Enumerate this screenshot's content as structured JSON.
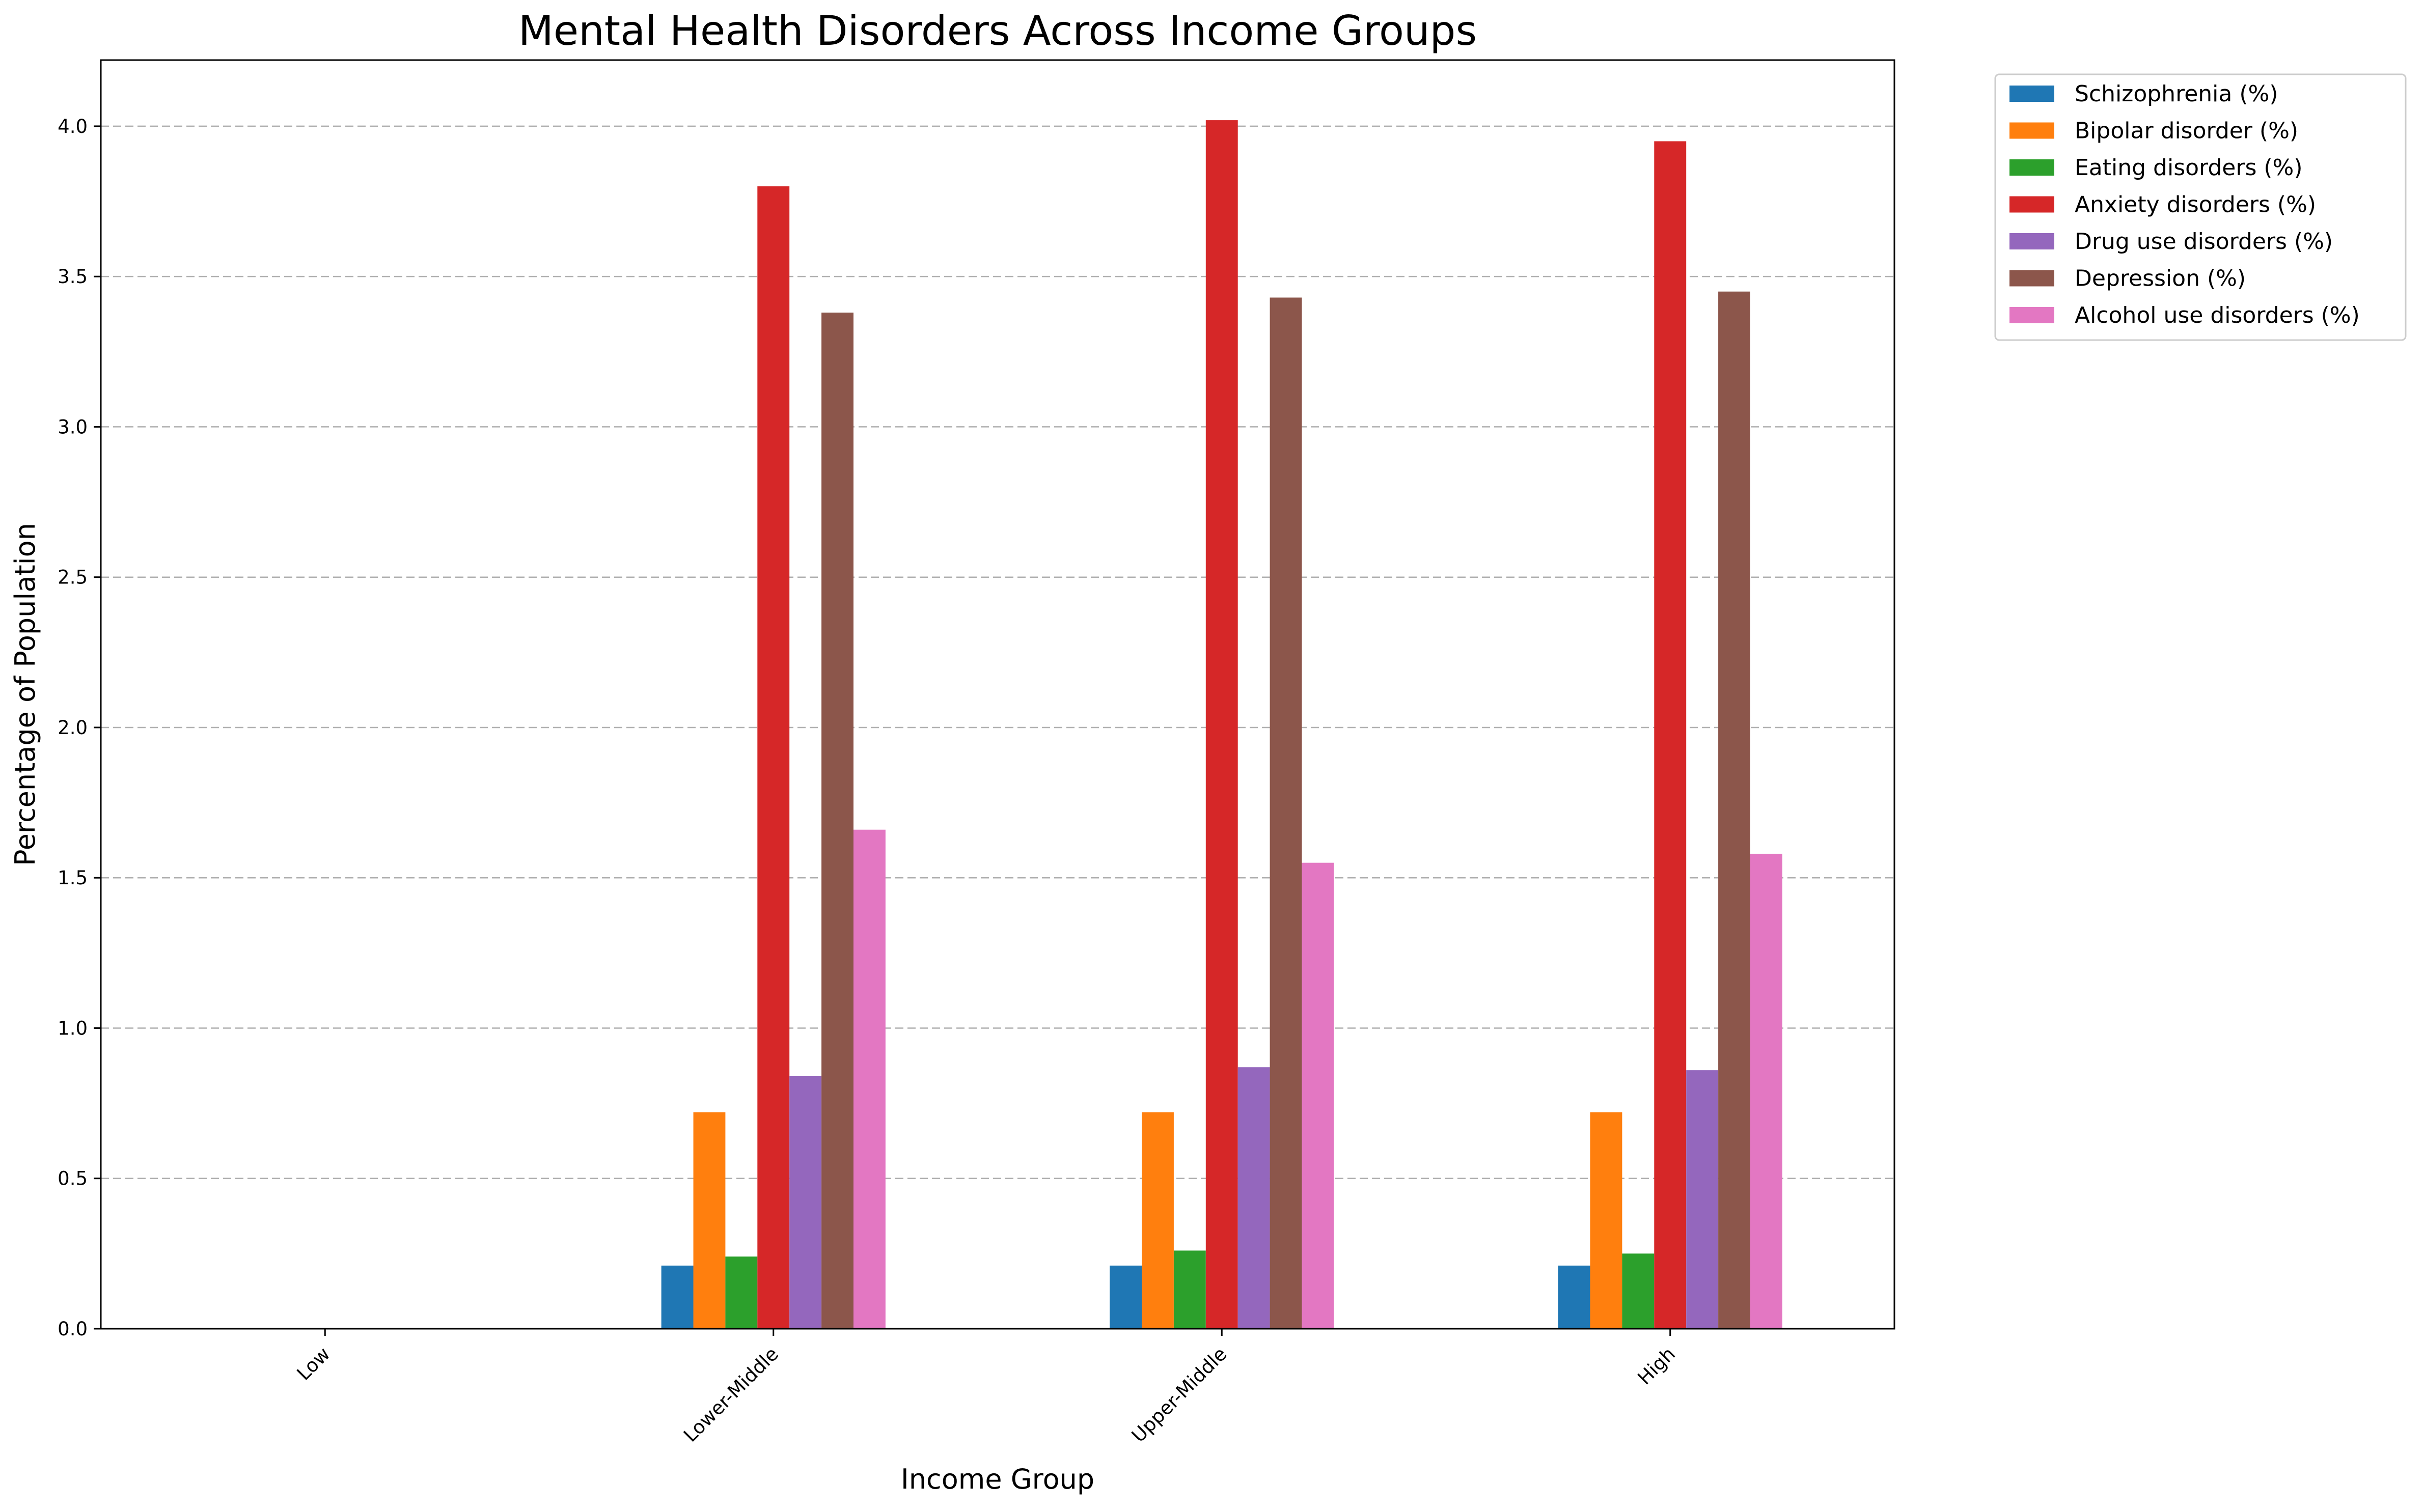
{
  "chart_data": {
    "type": "bar",
    "title": "Mental Health Disorders Across Income Groups",
    "xlabel": "Income Group",
    "ylabel": "Percentage of Population",
    "categories": [
      "Low",
      "Lower-Middle",
      "Upper-Middle",
      "High"
    ],
    "ylim": [
      0,
      4.22
    ],
    "yticks": [
      "0.0",
      "0.5",
      "1.0",
      "1.5",
      "2.0",
      "2.5",
      "3.0",
      "3.5",
      "4.0"
    ],
    "grid": "y-dashed",
    "legend_position": "outside-top-right",
    "series": [
      {
        "name": "Schizophrenia (%)",
        "color": "#1f77b4",
        "values": [
          null,
          0.21,
          0.21,
          0.21
        ]
      },
      {
        "name": "Bipolar disorder (%)",
        "color": "#ff7f0e",
        "values": [
          null,
          0.72,
          0.72,
          0.72
        ]
      },
      {
        "name": "Eating disorders (%)",
        "color": "#2ca02c",
        "values": [
          null,
          0.24,
          0.26,
          0.25
        ]
      },
      {
        "name": "Anxiety disorders (%)",
        "color": "#d62728",
        "values": [
          null,
          3.8,
          4.02,
          3.95
        ]
      },
      {
        "name": "Drug use disorders (%)",
        "color": "#9467bd",
        "values": [
          null,
          0.84,
          0.87,
          0.86
        ]
      },
      {
        "name": "Depression (%)",
        "color": "#8c564b",
        "values": [
          null,
          3.38,
          3.43,
          3.45
        ]
      },
      {
        "name": "Alcohol use disorders (%)",
        "color": "#e377c2",
        "values": [
          null,
          1.66,
          1.55,
          1.58
        ]
      }
    ]
  }
}
